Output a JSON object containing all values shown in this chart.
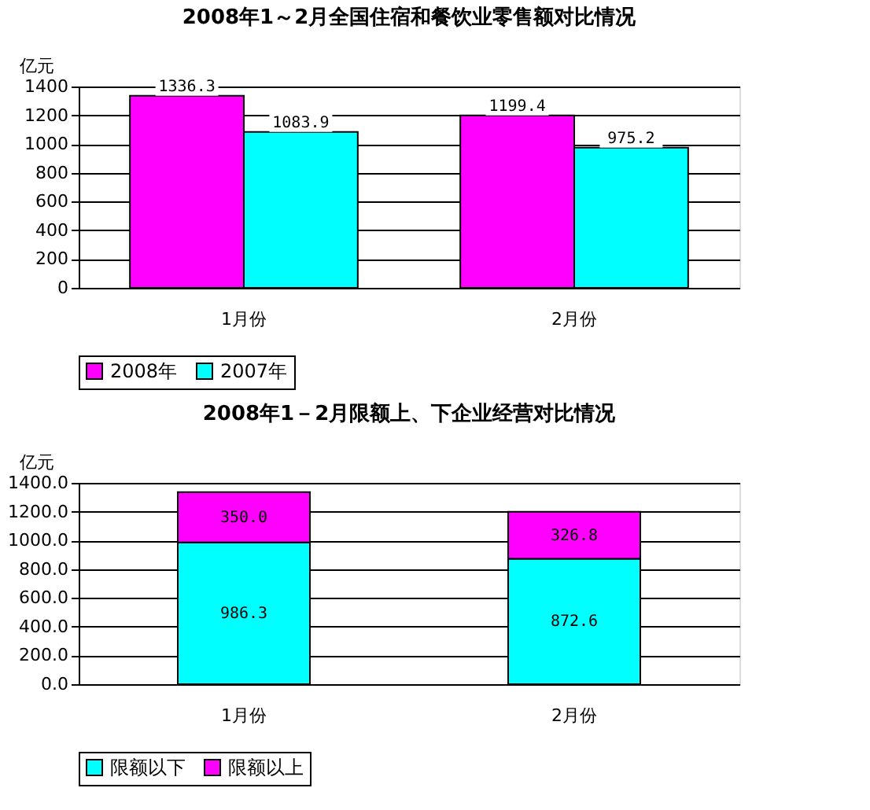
{
  "chart_data": [
    {
      "type": "bar",
      "title": "2008年1～2月全国住宿和餐饮业零售额对比情况",
      "ylabel": "亿元",
      "categories": [
        "1月份",
        "2月份"
      ],
      "series": [
        {
          "name": "2008年",
          "color": "#ff00ff",
          "values": [
            1336.3,
            1199.4
          ]
        },
        {
          "name": "2007年",
          "color": "#00ffff",
          "values": [
            1083.9,
            975.2
          ]
        }
      ],
      "ylim": [
        0,
        1400
      ],
      "yticks": [
        0,
        200,
        400,
        600,
        800,
        1000,
        1200,
        1400
      ],
      "grid": "y",
      "legend": "bottom",
      "data_labels": true
    },
    {
      "type": "bar",
      "title": "2008年1－2月限额上、下企业经营对比情况",
      "ylabel": "亿元",
      "categories": [
        "1月份",
        "2月份"
      ],
      "stacked": true,
      "series": [
        {
          "name": "限额以下",
          "color": "#00ffff",
          "values": [
            986.3,
            872.6
          ],
          "value_labels": [
            "986.3",
            "872.6"
          ]
        },
        {
          "name": "限额以上",
          "color": "#ff00ff",
          "values": [
            350.0,
            326.8
          ],
          "value_labels": [
            "350.0",
            "326.8"
          ]
        }
      ],
      "ylim": [
        0,
        1400
      ],
      "yticks": [
        {
          "value": 0,
          "label": "0.0"
        },
        {
          "value": 200,
          "label": "200.0"
        },
        {
          "value": 400,
          "label": "400.0"
        },
        {
          "value": 600,
          "label": "600.0"
        },
        {
          "value": 800,
          "label": "800.0"
        },
        {
          "value": 1000,
          "label": "1000.0"
        },
        {
          "value": 1200,
          "label": "1200.0"
        },
        {
          "value": 1400,
          "label": "1400.0"
        }
      ],
      "grid": "y",
      "legend": "bottom"
    }
  ]
}
